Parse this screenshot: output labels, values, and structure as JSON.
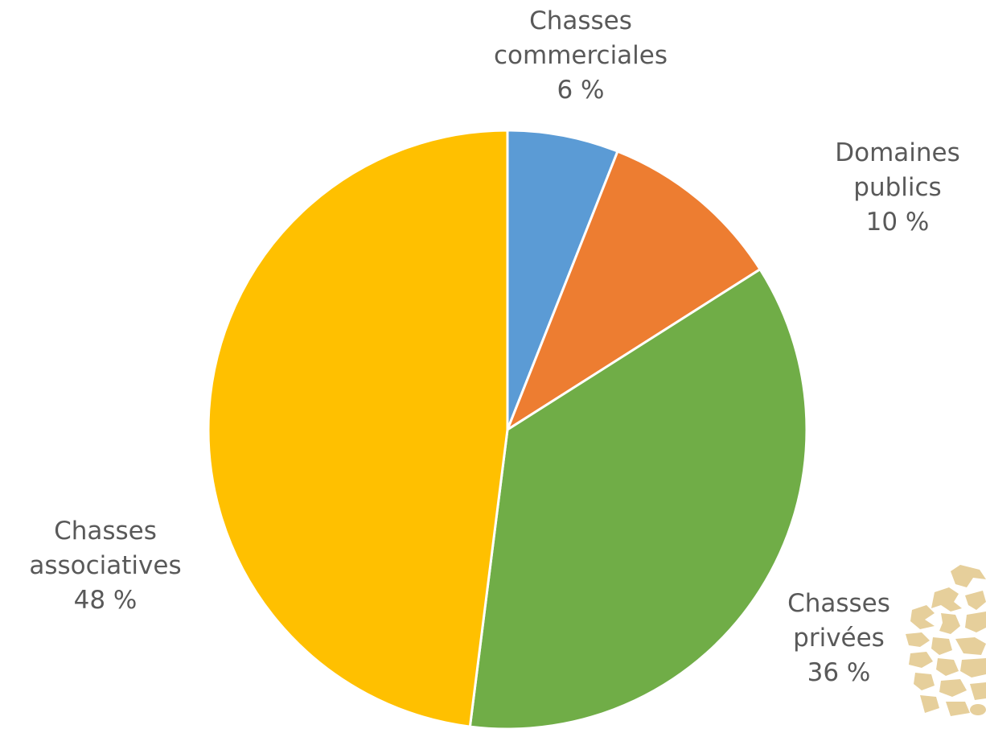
{
  "chart_data": {
    "type": "pie",
    "title": "",
    "start_angle_deg": 0,
    "direction": "clockwise",
    "slices": [
      {
        "label_lines": [
          "Chasses",
          "commerciales"
        ],
        "value": 6,
        "value_text": "6 %",
        "color": "#5b9bd5"
      },
      {
        "label_lines": [
          "Domaines",
          "publics"
        ],
        "value": 10,
        "value_text": "10 %",
        "color": "#ed7d31"
      },
      {
        "label_lines": [
          "Chasses",
          "privées"
        ],
        "value": 36,
        "value_text": "36 %",
        "color": "#70ad47"
      },
      {
        "label_lines": [
          "Chasses",
          "associatives"
        ],
        "value": 48,
        "value_text": "48 %",
        "color": "#ffc000"
      }
    ],
    "legend": "none",
    "data_labels": "outside"
  },
  "watermark": {
    "icon": "wildlife-silhouettes-icon",
    "color": "#e6cf9b"
  }
}
